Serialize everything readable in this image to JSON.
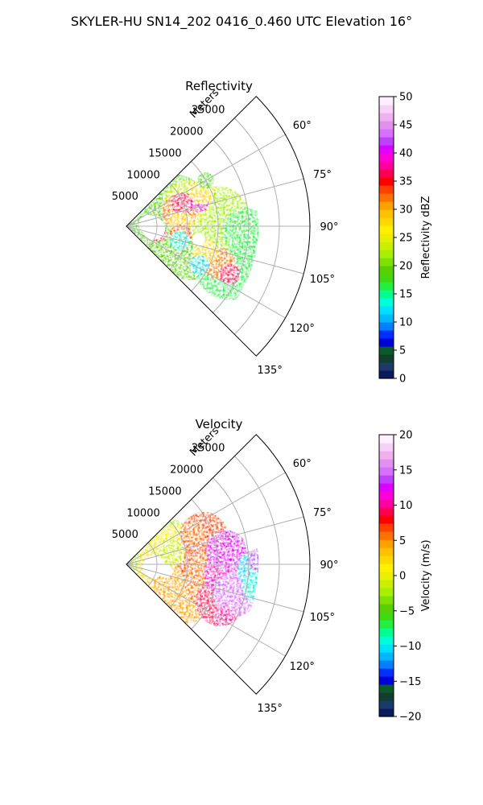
{
  "suptitle": "SKYLER-HU  SN14_202  0416_0.460 UTC Elevation 16°",
  "chart_data": [
    {
      "type": "heatmap",
      "title": "Reflectivity",
      "radial_label": "Meters",
      "radial_ticks": [
        5000,
        10000,
        15000,
        20000,
        25000
      ],
      "r_range": [
        0,
        25000
      ],
      "azimuth_range": [
        45,
        135
      ],
      "azimuth_ticks": [
        "60°",
        "75°",
        "90°",
        "105°",
        "120°",
        "135°"
      ],
      "grid": true,
      "colorbar": {
        "label": "Reflectivity dBZ",
        "min": 0,
        "max": 50,
        "ticks": [
          "0",
          "5",
          "10",
          "15",
          "20",
          "25",
          "30",
          "35",
          "40",
          "45",
          "50"
        ],
        "colors": [
          "#0b1a5c",
          "#1b3a6b",
          "#133d2e",
          "#0a5a2a",
          "#0000d8",
          "#0030ff",
          "#0080ff",
          "#00b8ff",
          "#00e0ff",
          "#00ffd8",
          "#00ff90",
          "#20f040",
          "#40d810",
          "#58d000",
          "#80e000",
          "#a8f000",
          "#c8f000",
          "#e8f000",
          "#fff000",
          "#ffd800",
          "#ffc000",
          "#ffa000",
          "#ff7000",
          "#ff4000",
          "#ff0000",
          "#ff0050",
          "#ff00a0",
          "#ff00d8",
          "#e000ff",
          "#c040ff",
          "#d870ff",
          "#e090f0",
          "#f0b0f0",
          "#f8d0f8",
          "#fff0ff"
        ]
      }
    },
    {
      "type": "heatmap",
      "title": "Velocity",
      "radial_label": "Meters",
      "radial_ticks": [
        5000,
        10000,
        15000,
        20000,
        25000
      ],
      "r_range": [
        0,
        25000
      ],
      "azimuth_range": [
        45,
        135
      ],
      "azimuth_ticks": [
        "60°",
        "75°",
        "90°",
        "105°",
        "120°",
        "135°"
      ],
      "grid": true,
      "colorbar": {
        "label": "Velocity (m/s)",
        "min": -20,
        "max": 20,
        "ticks": [
          "−20",
          "−15",
          "−10",
          "−5",
          "0",
          "5",
          "10",
          "15",
          "20"
        ],
        "colors": [
          "#0b1a5c",
          "#1b3a6b",
          "#133d2e",
          "#0a5a2a",
          "#0000d8",
          "#0030ff",
          "#0080ff",
          "#00b8ff",
          "#00e0ff",
          "#00ffd8",
          "#00ff90",
          "#20f040",
          "#40d810",
          "#58d000",
          "#80e000",
          "#a8f000",
          "#c8f000",
          "#e8f000",
          "#fff000",
          "#ffd800",
          "#ffc000",
          "#ffa000",
          "#ff7000",
          "#ff4000",
          "#ff0000",
          "#ff0050",
          "#ff00a0",
          "#ff00d8",
          "#e000ff",
          "#c040ff",
          "#d870ff",
          "#e090f0",
          "#f0b0f0",
          "#f8d0f8",
          "#fff0ff"
        ]
      }
    }
  ]
}
